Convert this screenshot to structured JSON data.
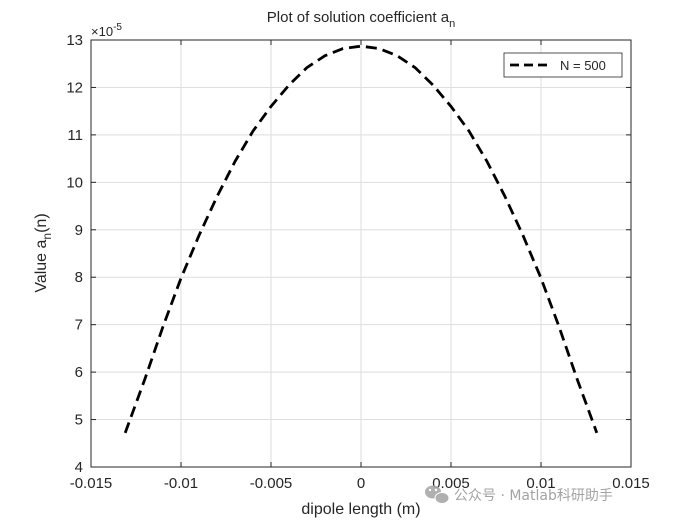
{
  "chart_data": {
    "type": "line",
    "title": "Plot of solution coefficient a",
    "title_subscript": "n",
    "xlabel": "dipole length (m)",
    "ylabel_main": "Value a",
    "ylabel_subscript": "n",
    "ylabel_tail": "(n)",
    "xlim": [
      -0.015,
      0.015
    ],
    "ylim": [
      4,
      13
    ],
    "x_ticks": [
      -0.015,
      -0.01,
      -0.005,
      0,
      0.005,
      0.01,
      0.015
    ],
    "x_tick_labels": [
      "-0.015",
      "-0.01",
      "-0.005",
      "0",
      "0.005",
      "0.01",
      "0.015"
    ],
    "y_ticks": [
      4,
      5,
      6,
      7,
      8,
      9,
      10,
      11,
      12,
      13
    ],
    "y_tick_labels": [
      "4",
      "5",
      "6",
      "7",
      "8",
      "9",
      "10",
      "11",
      "12",
      "13"
    ],
    "y_multiplier_base": "×10",
    "y_multiplier_exp": "-5",
    "grid": true,
    "legend_position": "top-right",
    "series": [
      {
        "name": "N = 500",
        "color": "#000000",
        "line_style": "dashed",
        "x": [
          -0.0131,
          -0.012,
          -0.011,
          -0.01,
          -0.009,
          -0.008,
          -0.007,
          -0.006,
          -0.005,
          -0.004,
          -0.003,
          -0.002,
          -0.001,
          0,
          0.001,
          0.002,
          0.003,
          0.004,
          0.005,
          0.006,
          0.007,
          0.008,
          0.009,
          0.01,
          0.011,
          0.012,
          0.0131
        ],
        "y": [
          4.72,
          5.86,
          6.96,
          7.98,
          8.88,
          9.7,
          10.44,
          11.08,
          11.6,
          12.05,
          12.42,
          12.67,
          12.82,
          12.87,
          12.82,
          12.67,
          12.42,
          12.05,
          11.6,
          11.08,
          10.44,
          9.7,
          8.88,
          7.98,
          6.96,
          5.86,
          4.72
        ]
      }
    ]
  },
  "watermark": {
    "icon": "wechat-icon",
    "text": "公众号 · Matlab科研助手"
  }
}
